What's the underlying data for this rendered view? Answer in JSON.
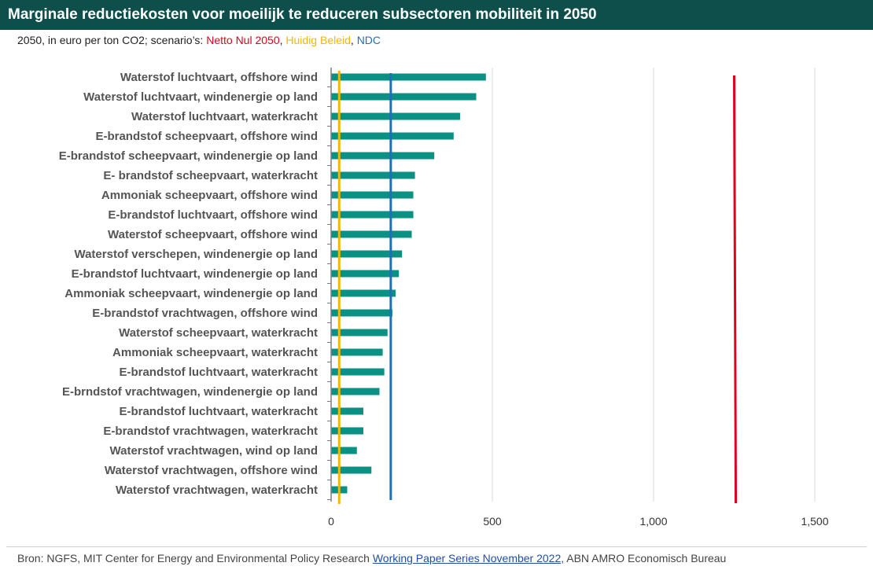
{
  "title": "Marginale reductiekosten voor moeilijk te reduceren subsectoren mobiliteit in 2050",
  "subtitle": {
    "prefix": "2050, in euro per ton CO2; scenario’s: ",
    "scenarios": [
      {
        "label": "Netto Nul 2050",
        "color": "#e3001b"
      },
      {
        "label": "Huidig Beleid",
        "color": "#f5b700"
      },
      {
        "label": "NDC",
        "color": "#1f6fb8"
      }
    ]
  },
  "source": {
    "prefix": "Bron: NGFS,  MIT Center for Energy and Environmental Policy Research ",
    "link": "Working Paper Series November 2022,",
    "suffix": " ABN AMRO Economisch Bureau"
  },
  "chart_data": {
    "type": "bar",
    "orientation": "horizontal",
    "bar_color": "#0a9183",
    "categories": [
      "Waterstof luchtvaart, offshore wind",
      "Waterstof luchtvaart, windenergie op land",
      "Waterstof luchtvaart, waterkracht",
      "E-brandstof scheepvaart, offshore wind",
      "E-brandstof scheepvaart, windenergie op land",
      "E- brandstof scheepvaart, waterkracht",
      "Ammoniak scheepvaart, offshore wind",
      "E-brandstof luchtvaart, offshore wind",
      "Waterstof scheepvaart, offshore wind",
      "Waterstof verschepen, windenergie op land",
      "E-brandstof luchtvaart, windenergie op land",
      "Ammoniak scheepvaart, windenergie op land",
      "E-brandstof vrachtwagen, offshore wind",
      "Waterstof scheepvaart, waterkracht",
      "Ammoniak scheepvaart, waterkracht",
      "E-brandstof luchtvaart, waterkracht",
      "E-brndstof vrachtwagen, windenergie op land",
      "E-brandstof luchtvaart, waterkracht",
      "E-brandstof vrachtwagen, waterkracht",
      "Waterstof vrachtwagen, wind op land",
      "Waterstof vrachtwagen, offshore wind",
      "Waterstof vrachtwagen, waterkracht"
    ],
    "values": [
      480,
      450,
      400,
      380,
      320,
      260,
      255,
      255,
      250,
      220,
      210,
      200,
      190,
      175,
      160,
      165,
      150,
      100,
      100,
      80,
      125,
      50
    ],
    "xlim": [
      0,
      1600
    ],
    "xticks": [
      0,
      500,
      1000,
      1500
    ],
    "xtick_labels": [
      "0",
      "500",
      "1,000",
      "1,500"
    ],
    "grid": "vertical",
    "reference_lines": [
      {
        "name": "Huidig Beleid",
        "value": 25,
        "color": "#f5b700"
      },
      {
        "name": "NDC",
        "value": 185,
        "color": "#1f6fb8"
      },
      {
        "name": "Netto Nul 2050",
        "value_top": 1250,
        "value_bottom": 1255,
        "color": "#e3001b"
      }
    ]
  }
}
